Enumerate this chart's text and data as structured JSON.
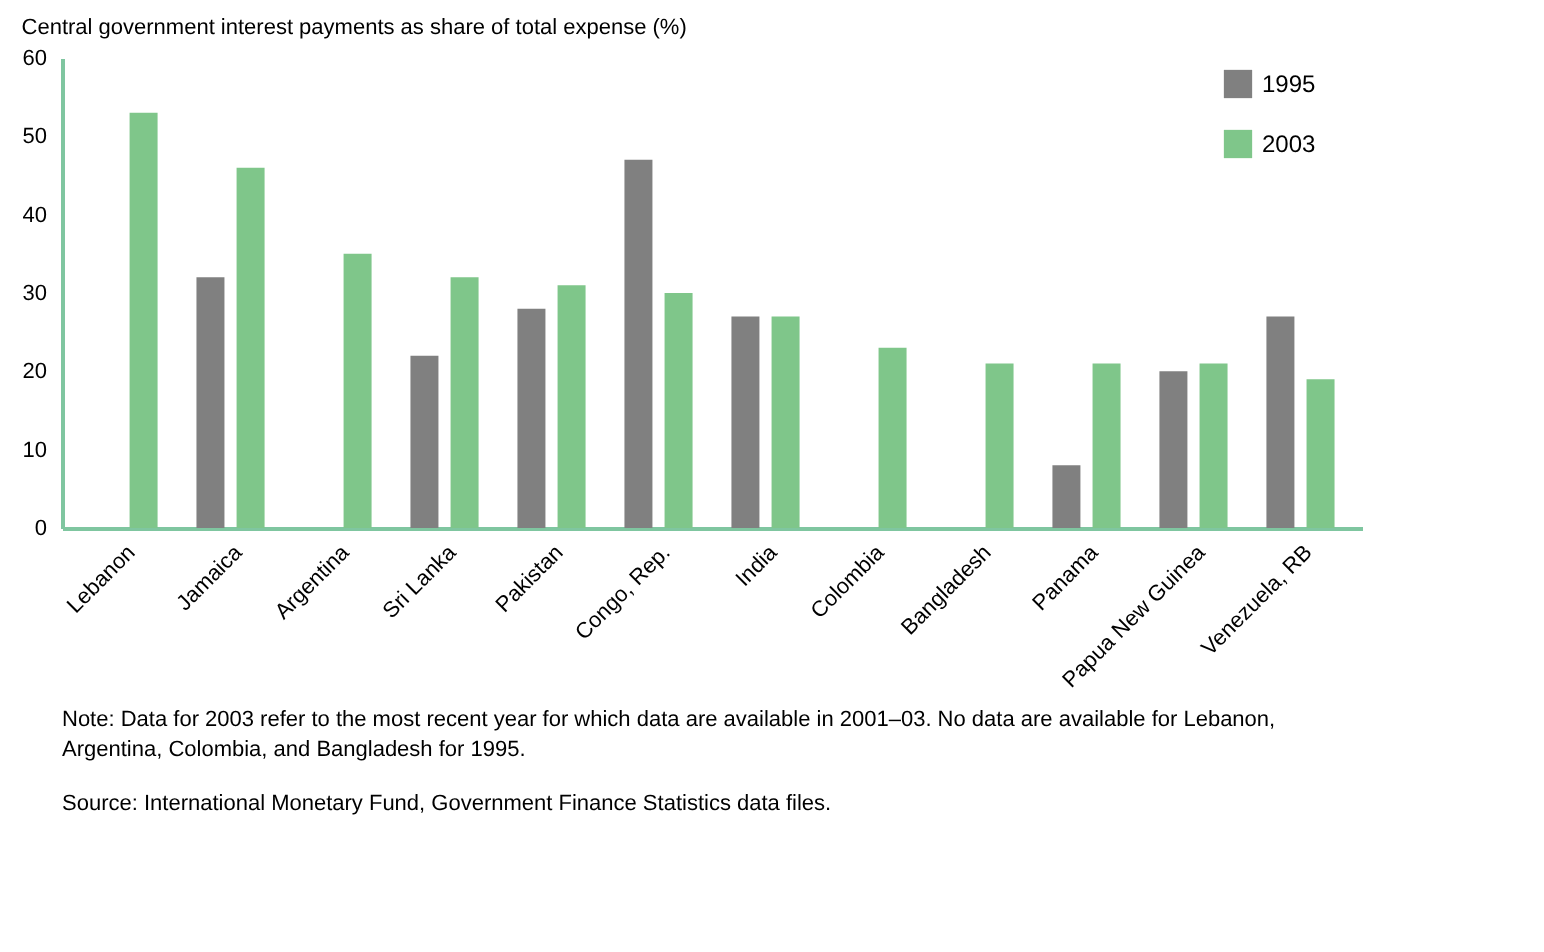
{
  "chart_data": {
    "type": "bar",
    "title": "Central government interest payments as share of total expense (%)",
    "categories": [
      "Lebanon",
      "Jamaica",
      "Argentina",
      "Sri Lanka",
      "Pakistan",
      "Congo, Rep.",
      "India",
      "Colombia",
      "Bangladesh",
      "Panama",
      "Papua New Guinea",
      "Venezuela, RB"
    ],
    "series": [
      {
        "name": "1995",
        "color": "#808080",
        "values": [
          null,
          32,
          null,
          22,
          28,
          47,
          27,
          null,
          null,
          8,
          20,
          27
        ]
      },
      {
        "name": "2003",
        "color": "#7fc68a",
        "values": [
          53,
          46,
          35,
          32,
          31,
          30,
          27,
          23,
          21,
          21,
          21,
          19
        ]
      }
    ],
    "ylim": [
      0,
      60
    ],
    "yticks": [
      0,
      10,
      20,
      30,
      40,
      50,
      60
    ],
    "grid": false,
    "legend": "top right",
    "annotations": [
      "Note: Data for 2003 refer to the most recent year for which data are available in 2001–03. No data are available for Lebanon, Argentina, Colombia, and Bangladesh for 1995.",
      "Source: International Monetary Fund, Government Finance Statistics data files."
    ]
  }
}
